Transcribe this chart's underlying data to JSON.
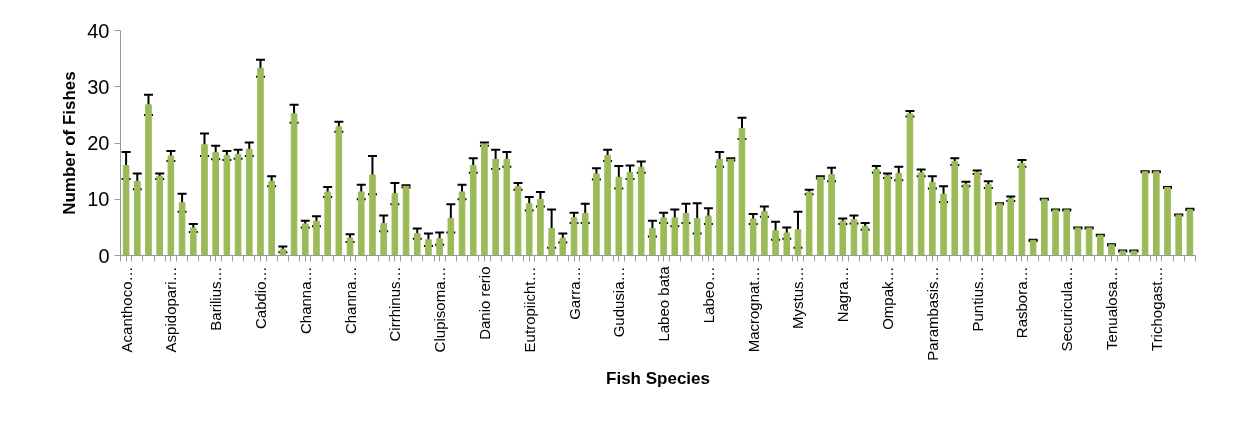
{
  "chart_data": {
    "type": "bar",
    "xlabel": "Fish Species",
    "ylabel": "Number of Fishes",
    "categories": [
      "Acanthoco…",
      null,
      null,
      null,
      "Aspidopari…",
      null,
      null,
      null,
      "Barilius…",
      null,
      null,
      null,
      "Cabdio…",
      null,
      null,
      null,
      "Channa…",
      null,
      null,
      null,
      "Channa…",
      null,
      null,
      null,
      "Cirrhinus…",
      null,
      null,
      null,
      "Clupisoma…",
      null,
      null,
      null,
      "Danio rerio",
      null,
      null,
      null,
      "Eutropiicht…",
      null,
      null,
      null,
      "Garra…",
      null,
      null,
      null,
      "Gudusia…",
      null,
      null,
      null,
      "Labeo bata",
      null,
      null,
      null,
      "Labeo…",
      null,
      null,
      null,
      "Macrognat…",
      null,
      null,
      null,
      "Mystus…",
      null,
      null,
      null,
      "Nagra…",
      null,
      null,
      null,
      "Ompak…",
      null,
      null,
      null,
      "Parambasis…",
      null,
      null,
      null,
      "Puntius…",
      null,
      null,
      null,
      "Rasbora…",
      null,
      null,
      null,
      "Securicula…",
      null,
      null,
      null,
      "Tenualosa…",
      null,
      null,
      null,
      "Trichogast…",
      null,
      null,
      null
    ],
    "values": [
      16.0,
      13.2,
      26.8,
      14.1,
      17.7,
      9.4,
      4.9,
      19.7,
      18.3,
      17.8,
      18.0,
      18.9,
      33.3,
      13.2,
      1.1,
      25.2,
      5.6,
      6.1,
      11.3,
      22.9,
      3.1,
      11.3,
      14.3,
      5.7,
      11.0,
      12.3,
      3.9,
      2.8,
      3.0,
      6.6,
      11.3,
      16.0,
      19.8,
      17.1,
      17.1,
      12.3,
      9.2,
      10.0,
      4.8,
      3.1,
      6.7,
      7.5,
      14.5,
      17.8,
      13.9,
      14.8,
      15.7,
      4.8,
      6.7,
      6.7,
      7.5,
      6.6,
      7.0,
      17.1,
      17.1,
      22.6,
      6.5,
      7.8,
      4.4,
      4.0,
      4.6,
      11.3,
      13.9,
      14.4,
      6.1,
      6.4,
      5.2,
      15.3,
      14.2,
      14.6,
      25.2,
      14.7,
      13.0,
      10.9,
      16.7,
      12.7,
      14.8,
      12.6,
      9.2,
      10.1,
      16.4,
      2.7,
      10.0,
      8.1,
      8.1,
      4.9,
      4.9,
      3.6,
      1.9,
      0.8,
      0.8,
      14.9,
      14.9,
      12.1,
      7.2,
      8.2
    ],
    "errors": [
      2.4,
      1.4,
      1.8,
      0.5,
      0.9,
      1.6,
      0.7,
      2.0,
      1.2,
      0.8,
      0.8,
      1.2,
      1.5,
      0.9,
      0.5,
      1.6,
      0.6,
      0.9,
      0.9,
      0.9,
      0.7,
      1.3,
      3.4,
      1.4,
      1.9,
      0.2,
      0.9,
      1.1,
      1.1,
      2.5,
      1.3,
      1.3,
      0.3,
      1.7,
      1.3,
      0.6,
      1.2,
      1.3,
      3.4,
      0.8,
      0.9,
      1.7,
      1.0,
      1.0,
      2.0,
      1.2,
      1.0,
      1.4,
      0.9,
      1.5,
      1.7,
      2.7,
      1.4,
      1.3,
      0.2,
      1.9,
      0.9,
      0.9,
      1.6,
      1.0,
      3.2,
      0.4,
      0.2,
      1.2,
      0.5,
      0.7,
      0.6,
      0.6,
      0.4,
      1.2,
      0.5,
      0.6,
      1.1,
      1.4,
      0.6,
      0.4,
      0.3,
      0.6,
      0.1,
      0.4,
      0.6,
      0.1,
      0.1,
      0.1,
      0.1,
      0.1,
      0.1,
      0.1,
      0.1,
      0.1,
      0.1,
      0.1,
      0.1,
      0.1,
      0.1,
      0.1
    ],
    "color": "#9bbb59",
    "ylim": [
      0,
      40
    ],
    "yticks": [
      0,
      10,
      20,
      30,
      40
    ],
    "grid": false
  }
}
